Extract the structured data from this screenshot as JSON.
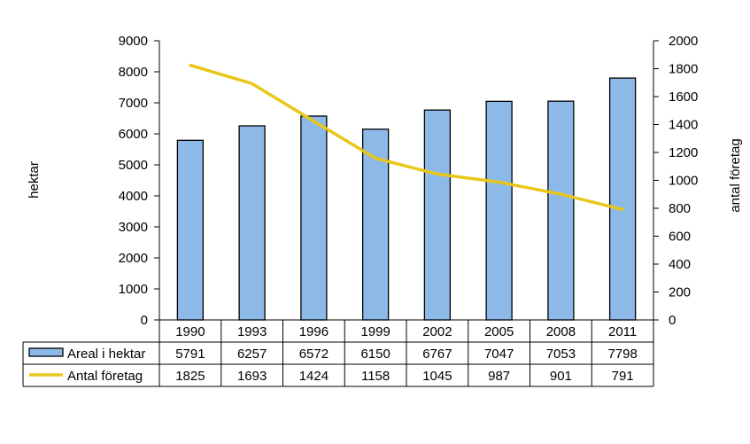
{
  "chart_data": {
    "type": "bar+line",
    "categories": [
      "1990",
      "1993",
      "1996",
      "1999",
      "2002",
      "2005",
      "2008",
      "2011"
    ],
    "series": [
      {
        "name": "Areal i hektar",
        "kind": "bar",
        "axis": "left",
        "color": "#8DB9E8",
        "values": [
          5791,
          6257,
          6572,
          6150,
          6767,
          7047,
          7053,
          7798
        ]
      },
      {
        "name": "Antal företag",
        "kind": "line",
        "axis": "right",
        "color": "#E8C71A",
        "values": [
          1825,
          1693,
          1424,
          1158,
          1045,
          987,
          901,
          791
        ]
      }
    ],
    "ylabel_left": "hektar",
    "ylabel_right": "antal företag",
    "ylim_left": [
      0,
      9000
    ],
    "ylim_right": [
      0,
      2000
    ],
    "yticks_left": [
      "0",
      "1000",
      "2000",
      "3000",
      "4000",
      "5000",
      "6000",
      "7000",
      "8000",
      "9000"
    ],
    "yticks_right": [
      "0",
      "200",
      "400",
      "600",
      "800",
      "1000",
      "1200",
      "1400",
      "1600",
      "1800",
      "2000"
    ],
    "legend": "data-table"
  }
}
